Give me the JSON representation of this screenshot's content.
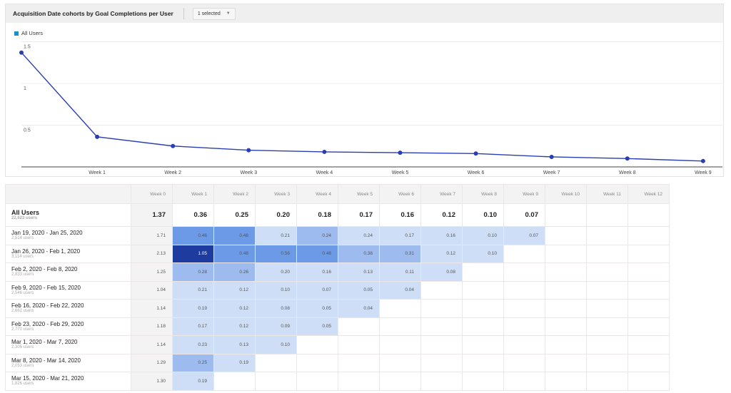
{
  "header": {
    "title": "Acquisition Date cohorts by Goal Completions per User",
    "selector_label": "1 selected"
  },
  "legend": {
    "label": "All Users",
    "color": "#1a8fcf"
  },
  "chart_data": {
    "type": "line",
    "x": [
      "Week 0",
      "Week 1",
      "Week 2",
      "Week 3",
      "Week 4",
      "Week 5",
      "Week 6",
      "Week 7",
      "Week 8",
      "Week 9"
    ],
    "x_tick_labels": [
      "Week 1",
      "Week 2",
      "Week 3",
      "Week 4",
      "Week 5",
      "Week 6",
      "Week 7",
      "Week 8",
      "Week 9"
    ],
    "series": [
      {
        "name": "All Users",
        "values": [
          1.37,
          0.36,
          0.25,
          0.2,
          0.18,
          0.17,
          0.16,
          0.12,
          0.1,
          0.07
        ],
        "color": "#2a3eb1"
      }
    ],
    "y_ticks": [
      "0.5",
      "1",
      "1.5"
    ],
    "ylim": [
      0,
      1.5
    ],
    "grid": true,
    "legend": "top-left"
  },
  "table": {
    "columns": [
      "Week 0",
      "Week 1",
      "Week 2",
      "Week 3",
      "Week 4",
      "Week 5",
      "Week 6",
      "Week 7",
      "Week 8",
      "Week 9",
      "Week 10",
      "Week 11",
      "Week 12"
    ],
    "all": {
      "name": "All Users",
      "users": "22,623 users",
      "values": [
        "1.37",
        "0.36",
        "0.25",
        "0.20",
        "0.18",
        "0.17",
        "0.16",
        "0.12",
        "0.10",
        "0.07"
      ]
    },
    "rows": [
      {
        "name": "Jan 19, 2020 - Jan 25, 2020",
        "users": "2,514 users",
        "values": [
          "1.71",
          "0.46",
          "0.48",
          "0.21",
          "0.24",
          "0.24",
          "0.17",
          "0.16",
          "0.10",
          "0.07"
        ],
        "levels": [
          0,
          3,
          3,
          1,
          2,
          1,
          1,
          1,
          1,
          1
        ]
      },
      {
        "name": "Jan 26, 2020 - Feb 1, 2020",
        "users": "3,114 users",
        "values": [
          "2.13",
          "1.05",
          "0.48",
          "0.56",
          "0.48",
          "0.38",
          "0.31",
          "0.12",
          "0.10"
        ],
        "levels": [
          0,
          4,
          3,
          3,
          3,
          2,
          2,
          1,
          1
        ]
      },
      {
        "name": "Feb 2, 2020 - Feb 8, 2020",
        "users": "2,833 users",
        "values": [
          "1.25",
          "0.28",
          "0.26",
          "0.20",
          "0.16",
          "0.13",
          "0.11",
          "0.08"
        ],
        "levels": [
          0,
          2,
          2,
          1,
          1,
          1,
          1,
          1
        ]
      },
      {
        "name": "Feb 9, 2020 - Feb 15, 2020",
        "users": "2,546 users",
        "values": [
          "1.04",
          "0.21",
          "0.12",
          "0.10",
          "0.07",
          "0.05",
          "0.04"
        ],
        "levels": [
          0,
          1,
          1,
          1,
          1,
          1,
          1
        ]
      },
      {
        "name": "Feb 16, 2020 - Feb 22, 2020",
        "users": "2,662 users",
        "values": [
          "1.14",
          "0.19",
          "0.12",
          "0.08",
          "0.05",
          "0.04"
        ],
        "levels": [
          0,
          1,
          1,
          1,
          1,
          1
        ]
      },
      {
        "name": "Feb 23, 2020 - Feb 29, 2020",
        "users": "2,770 users",
        "values": [
          "1.18",
          "0.17",
          "0.12",
          "0.09",
          "0.05"
        ],
        "levels": [
          0,
          1,
          1,
          1,
          1
        ]
      },
      {
        "name": "Mar 1, 2020 - Mar 7, 2020",
        "users": "2,305 users",
        "values": [
          "1.14",
          "0.23",
          "0.13",
          "0.10"
        ],
        "levels": [
          0,
          1,
          1,
          1
        ]
      },
      {
        "name": "Mar 8, 2020 - Mar 14, 2020",
        "users": "2,053 users",
        "values": [
          "1.29",
          "0.25",
          "0.19"
        ],
        "levels": [
          0,
          2,
          1
        ]
      },
      {
        "name": "Mar 15, 2020 - Mar 21, 2020",
        "users": "1,826 users",
        "values": [
          "1.30",
          "0.19"
        ],
        "levels": [
          0,
          1
        ]
      }
    ]
  }
}
